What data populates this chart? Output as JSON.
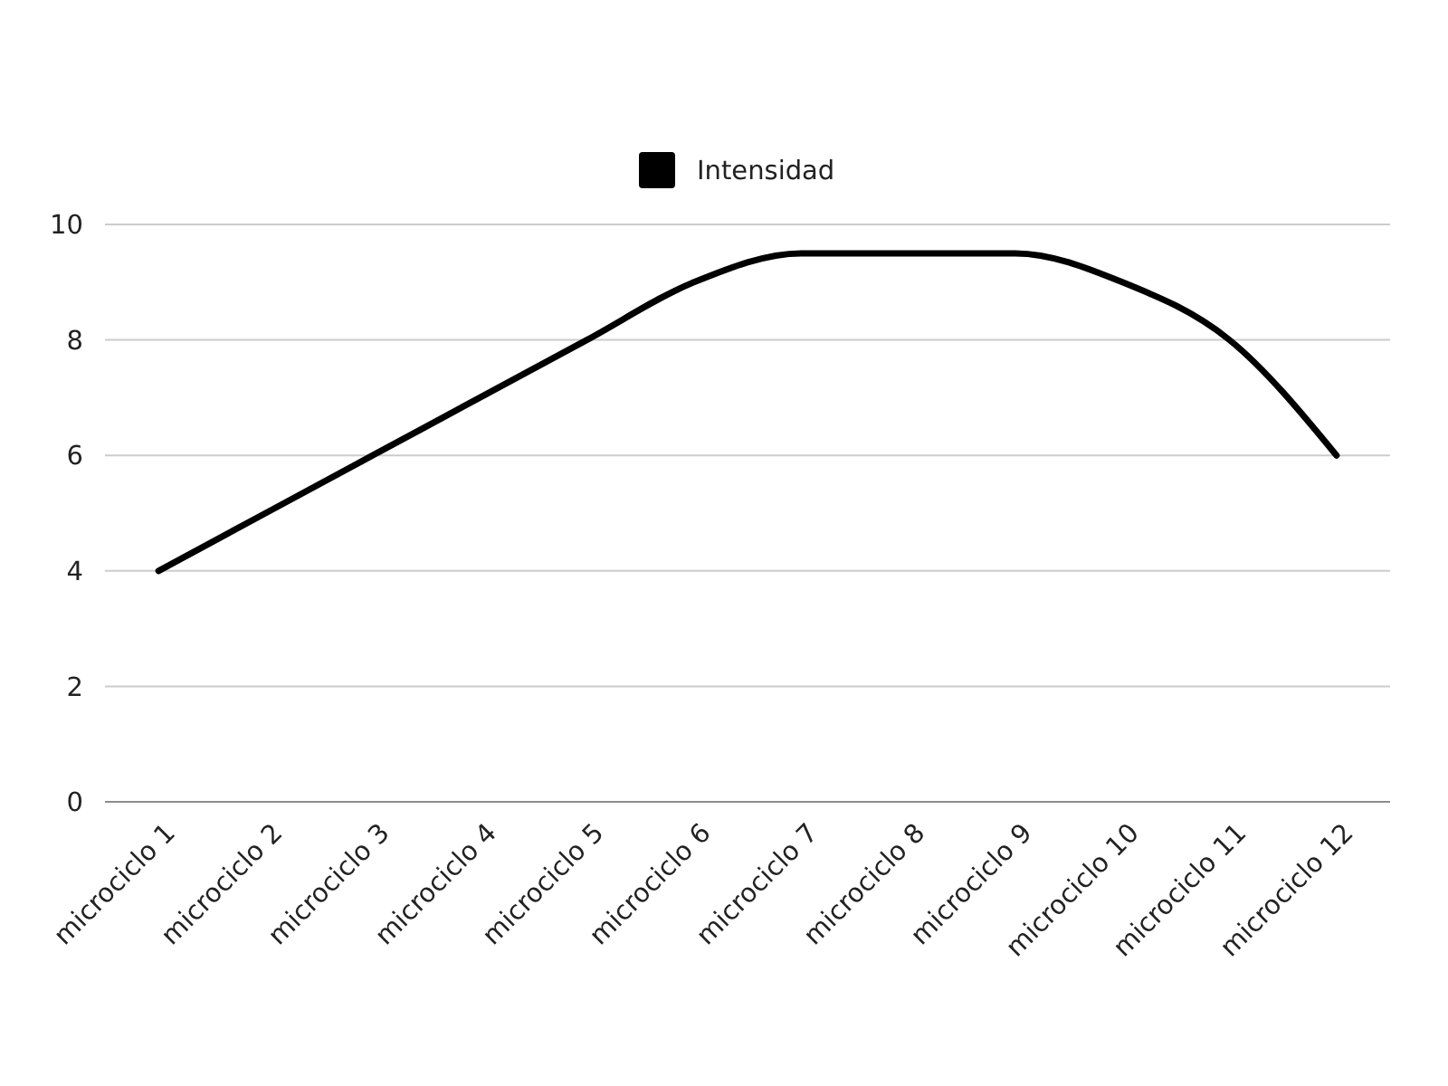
{
  "chart_data": {
    "type": "line",
    "categories": [
      "microciclo 1",
      "microciclo 2",
      "microciclo 3",
      "microciclo 4",
      "microciclo 5",
      "microciclo 6",
      "microciclo 7",
      "microciclo 8",
      "microciclo 9",
      "microciclo 10",
      "microciclo 11",
      "microciclo 12"
    ],
    "series": [
      {
        "name": "Intensidad",
        "color": "#000000",
        "values": [
          4,
          5,
          6,
          7,
          8,
          9,
          9.5,
          9.5,
          9.5,
          9,
          8,
          6
        ]
      }
    ],
    "ylim": [
      0,
      10
    ],
    "yticks": [
      0,
      2,
      4,
      6,
      8,
      10
    ],
    "grid": "y",
    "legend": "top"
  }
}
